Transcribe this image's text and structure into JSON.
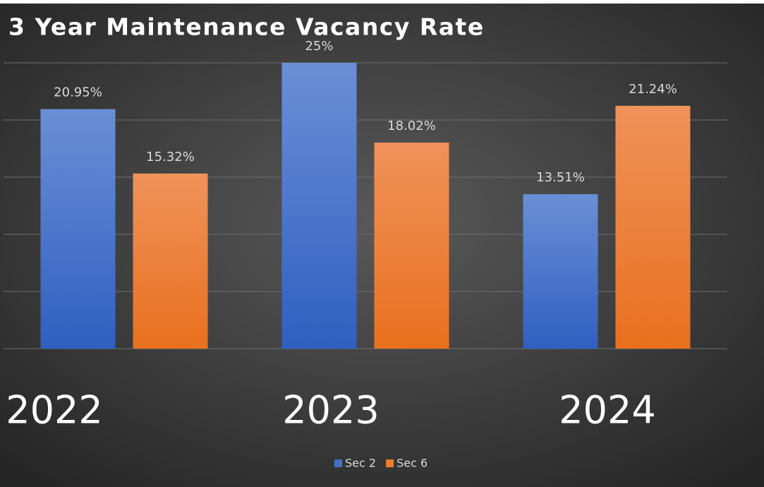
{
  "chart_data": {
    "type": "bar",
    "title": "3 Year Maintenance Vacancy Rate",
    "categories": [
      "2022",
      "2023",
      "2024"
    ],
    "series": [
      {
        "name": "Sec 2",
        "color": "#4472c4",
        "values": [
          20.95,
          25,
          13.51
        ],
        "value_labels": [
          "20.95%",
          "25%",
          "13.51%"
        ]
      },
      {
        "name": "Sec 6",
        "color": "#ed7d31",
        "values": [
          15.32,
          18.02,
          21.24
        ],
        "value_labels": [
          "15.32%",
          "18.02%",
          "21.24%"
        ]
      }
    ],
    "ylim": [
      0,
      25
    ],
    "yticks": [
      0,
      5,
      10,
      15,
      20,
      25
    ],
    "grid": true,
    "legend": "bottom"
  }
}
